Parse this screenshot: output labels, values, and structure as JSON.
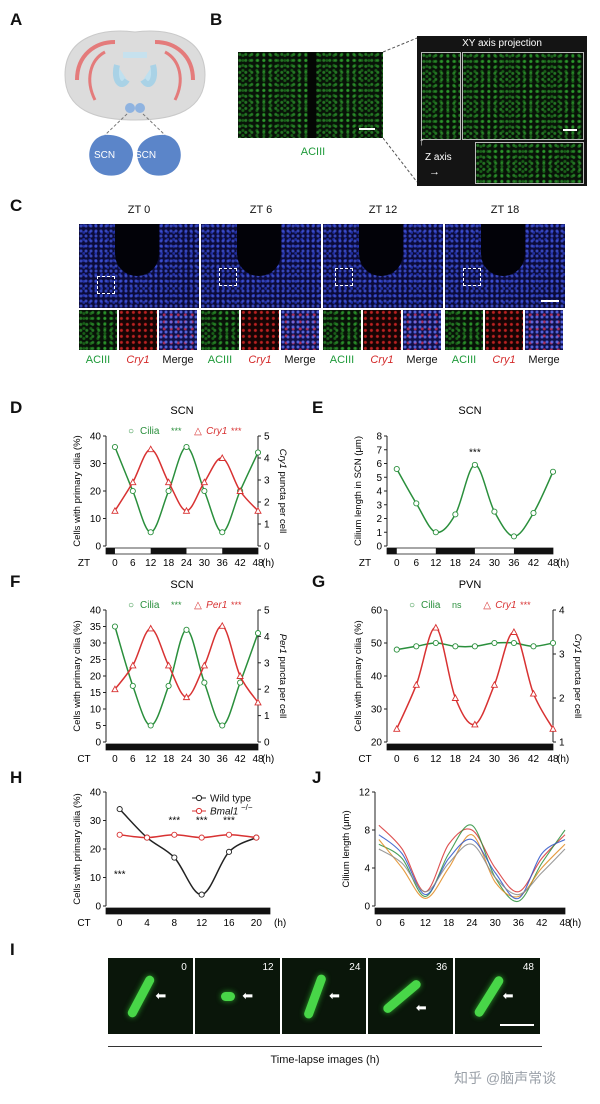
{
  "panels": {
    "A": "A",
    "B": "B",
    "C": "C",
    "D": "D",
    "E": "E",
    "F": "F",
    "G": "G",
    "H": "H",
    "I": "I",
    "J": "J"
  },
  "panel_a": {
    "scn_left": "SCN",
    "scn_right": "SCN"
  },
  "panel_b": {
    "stain": "ACIII",
    "projection_title": "XY axis projection",
    "z_axis": "Z axis"
  },
  "panel_c": {
    "timepoints": [
      "ZT 0",
      "ZT 6",
      "ZT 12",
      "ZT 18"
    ],
    "channels": [
      "ACIII",
      "Cry1",
      "Merge"
    ]
  },
  "panel_i": {
    "frame_times": [
      "0",
      "12",
      "24",
      "36",
      "48"
    ],
    "caption": "Time-lapse images (h)"
  },
  "watermark": "知乎 @脑声常谈",
  "colors": {
    "green": "#2a8f3c",
    "red": "#d83232",
    "black": "#222222"
  },
  "chart_data": [
    {
      "id": "D",
      "type": "line",
      "title": "SCN",
      "xlabel_prefix": "ZT",
      "x_unit": "(h)",
      "ylabel": "Cells with primary cilia (%)",
      "y2label": "Cry1 puncta per cell",
      "xticks": [
        0,
        6,
        12,
        18,
        24,
        30,
        36,
        42,
        48
      ],
      "ylim": [
        0,
        40
      ],
      "yticks": [
        0,
        10,
        20,
        30,
        40
      ],
      "y2lim": [
        0,
        5
      ],
      "y2ticks": [
        0,
        1,
        2,
        3,
        4,
        5
      ],
      "dark_bars": [
        [
          -3,
          0
        ],
        [
          12,
          24
        ],
        [
          36,
          48
        ]
      ],
      "legend": [
        {
          "name": "Cilia",
          "marker": "o",
          "sig": "***",
          "color": "#2a8f3c"
        },
        {
          "name": "Cry1",
          "marker": "triangle",
          "sig": "***",
          "color": "#d83232"
        }
      ],
      "series": [
        {
          "name": "Cilia",
          "axis": "left",
          "color": "#2a8f3c",
          "x": [
            0,
            6,
            12,
            18,
            24,
            30,
            36,
            42,
            48
          ],
          "y": [
            36,
            20,
            5,
            20,
            36,
            20,
            5,
            20,
            34
          ]
        },
        {
          "name": "Cry1",
          "axis": "right",
          "color": "#d83232",
          "x": [
            0,
            6,
            12,
            18,
            24,
            30,
            36,
            42,
            48
          ],
          "y": [
            1.6,
            2.9,
            4.4,
            2.9,
            1.6,
            2.9,
            4.0,
            2.5,
            1.6
          ]
        }
      ]
    },
    {
      "id": "E",
      "type": "line",
      "title": "SCN",
      "xlabel_prefix": "ZT",
      "x_unit": "(h)",
      "ylabel": "Cilium length in SCN (μm)",
      "xticks": [
        0,
        6,
        12,
        18,
        24,
        30,
        36,
        42,
        48
      ],
      "ylim": [
        0,
        8
      ],
      "yticks": [
        0,
        1,
        2,
        3,
        4,
        5,
        6,
        7,
        8
      ],
      "dark_bars": [
        [
          -3,
          0
        ],
        [
          12,
          24
        ],
        [
          36,
          48
        ]
      ],
      "annotation": "***",
      "series": [
        {
          "name": "",
          "axis": "left",
          "color": "#2a8f3c",
          "x": [
            0,
            6,
            12,
            18,
            24,
            30,
            36,
            42,
            48
          ],
          "y": [
            5.6,
            3.1,
            1.0,
            2.3,
            5.9,
            2.5,
            0.7,
            2.4,
            5.4
          ]
        }
      ]
    },
    {
      "id": "F",
      "type": "line",
      "title": "SCN",
      "xlabel_prefix": "CT",
      "x_unit": "(h)",
      "ylabel": "Cells with primary cilia (%)",
      "y2label": "Per1 puncta per cell",
      "xticks": [
        0,
        6,
        12,
        18,
        24,
        30,
        36,
        42,
        48
      ],
      "ylim": [
        0,
        40
      ],
      "yticks": [
        0,
        5,
        10,
        15,
        20,
        25,
        30,
        35,
        40
      ],
      "y2lim": [
        0,
        5
      ],
      "y2ticks": [
        0,
        1,
        2,
        3,
        4,
        5
      ],
      "dark_bars": [
        [
          -3,
          48
        ]
      ],
      "legend": [
        {
          "name": "Cilia",
          "marker": "o",
          "sig": "***",
          "color": "#2a8f3c"
        },
        {
          "name": "Per1",
          "marker": "triangle",
          "sig": "***",
          "color": "#d83232"
        }
      ],
      "series": [
        {
          "name": "Cilia",
          "axis": "left",
          "color": "#2a8f3c",
          "x": [
            0,
            6,
            12,
            18,
            24,
            30,
            36,
            42,
            48
          ],
          "y": [
            35,
            17,
            5,
            17,
            34,
            18,
            5,
            18,
            33
          ]
        },
        {
          "name": "Per1",
          "axis": "right",
          "color": "#d83232",
          "x": [
            0,
            6,
            12,
            18,
            24,
            30,
            36,
            42,
            48
          ],
          "y": [
            2.0,
            2.9,
            4.3,
            2.9,
            1.7,
            2.9,
            4.4,
            2.5,
            1.5
          ]
        }
      ]
    },
    {
      "id": "G",
      "type": "line",
      "title": "PVN",
      "xlabel_prefix": "CT",
      "x_unit": "(h)",
      "ylabel": "Cells with primary cilia (%)",
      "y2label": "Cry1 puncta per cell",
      "xticks": [
        0,
        6,
        12,
        18,
        24,
        30,
        36,
        42,
        48
      ],
      "ylim": [
        20,
        60
      ],
      "yticks": [
        20,
        30,
        40,
        50,
        60
      ],
      "y2lim": [
        1,
        4
      ],
      "y2ticks": [
        1,
        2,
        3,
        4
      ],
      "dark_bars": [
        [
          -3,
          48
        ]
      ],
      "legend": [
        {
          "name": "Cilia",
          "marker": "o",
          "sig": "ns",
          "color": "#2a8f3c"
        },
        {
          "name": "Cry1",
          "marker": "triangle",
          "sig": "***",
          "color": "#d83232"
        }
      ],
      "series": [
        {
          "name": "Cilia",
          "axis": "left",
          "color": "#2a8f3c",
          "x": [
            0,
            6,
            12,
            18,
            24,
            30,
            36,
            42,
            48
          ],
          "y": [
            48,
            49,
            50,
            49,
            49,
            50,
            50,
            49,
            50
          ]
        },
        {
          "name": "Cry1",
          "axis": "right",
          "color": "#d83232",
          "x": [
            0,
            6,
            12,
            18,
            24,
            30,
            36,
            42,
            48
          ],
          "y": [
            1.3,
            2.3,
            3.6,
            2.0,
            1.4,
            2.3,
            3.5,
            2.1,
            1.3
          ]
        }
      ]
    },
    {
      "id": "H",
      "type": "line",
      "xlabel_prefix": "CT",
      "x_unit": "(h)",
      "ylabel": "Cells with primary cilia (%)",
      "xticks": [
        0,
        4,
        8,
        12,
        16,
        20
      ],
      "ylim": [
        0,
        40
      ],
      "yticks": [
        0,
        10,
        20,
        30,
        40
      ],
      "dark_bars": [
        [
          -2,
          22
        ]
      ],
      "legend": [
        {
          "name": "Wild type",
          "color": "#222222"
        },
        {
          "name": "Bmal1",
          "suffix": "−/−",
          "color": "#d83232"
        }
      ],
      "sig_labels": [
        {
          "x": 0,
          "text": "***",
          "y": 10
        },
        {
          "x": 8,
          "text": "***",
          "y": 29
        },
        {
          "x": 12,
          "text": "***",
          "y": 29
        },
        {
          "x": 16,
          "text": "***",
          "y": 29
        }
      ],
      "series": [
        {
          "name": "Wild type",
          "color": "#222222",
          "x": [
            0,
            4,
            8,
            12,
            16,
            20
          ],
          "y": [
            34,
            24,
            17,
            4,
            19,
            24
          ]
        },
        {
          "name": "Bmal1−/−",
          "color": "#d83232",
          "x": [
            0,
            4,
            8,
            12,
            16,
            20
          ],
          "y": [
            25,
            24,
            25,
            24,
            25,
            24
          ]
        }
      ]
    },
    {
      "id": "J",
      "type": "line",
      "ylabel": "Cilium length (μm)",
      "x_unit": "(h)",
      "xticks": [
        0,
        6,
        12,
        18,
        24,
        30,
        36,
        42,
        48
      ],
      "ylim": [
        0,
        12
      ],
      "yticks": [
        0,
        4,
        8,
        12
      ],
      "dark_bars": [
        [
          -1,
          48
        ]
      ],
      "series": [
        {
          "name": "",
          "color": "#d83232",
          "x": [
            0,
            6,
            12,
            18,
            24,
            30,
            36,
            42,
            48
          ],
          "y": [
            8.5,
            6.0,
            1.5,
            6.5,
            8.0,
            4.0,
            1.5,
            5.0,
            7.5
          ]
        },
        {
          "name": "",
          "color": "#2a8f3c",
          "x": [
            0,
            6,
            12,
            18,
            24,
            30,
            36,
            42,
            48
          ],
          "y": [
            6.5,
            5.0,
            1.0,
            5.5,
            8.5,
            3.0,
            0.5,
            4.5,
            8.0
          ]
        },
        {
          "name": "",
          "color": "#e08a1e",
          "x": [
            0,
            6,
            12,
            18,
            24,
            30,
            36,
            42,
            48
          ],
          "y": [
            7.0,
            4.0,
            0.8,
            4.0,
            7.5,
            2.5,
            1.0,
            4.0,
            6.5
          ]
        },
        {
          "name": "",
          "color": "#2d55c8",
          "x": [
            0,
            6,
            12,
            18,
            24,
            30,
            36,
            42,
            48
          ],
          "y": [
            7.5,
            5.5,
            1.2,
            5.0,
            7.0,
            3.5,
            0.8,
            5.5,
            7.0
          ]
        },
        {
          "name": "",
          "color": "#8a8a8a",
          "x": [
            0,
            6,
            12,
            18,
            24,
            30,
            36,
            42,
            48
          ],
          "y": [
            6.0,
            4.5,
            1.5,
            4.5,
            6.5,
            3.0,
            1.2,
            3.5,
            6.0
          ]
        }
      ]
    }
  ]
}
